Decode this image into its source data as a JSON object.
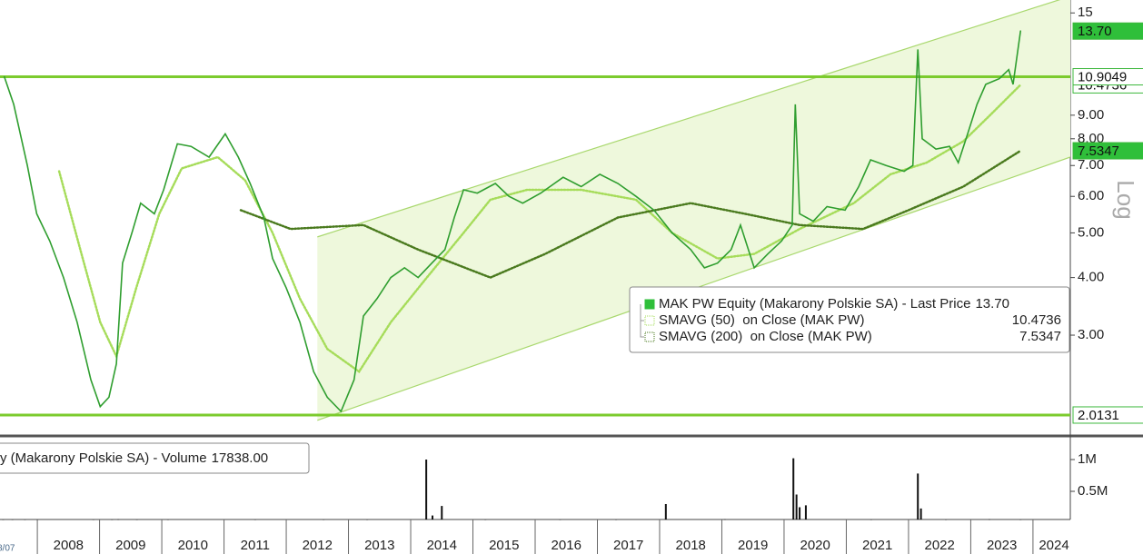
{
  "chart_data": {
    "type": "line",
    "log_scale": true,
    "xlim": [
      2007.4,
      2024.6
    ],
    "xticks": [
      2008,
      2009,
      2010,
      2011,
      2012,
      2013,
      2014,
      2015,
      2016,
      2017,
      2018,
      2019,
      2020,
      2021,
      2022,
      2023,
      2024
    ],
    "x_start_label": "8/07",
    "ylim": [
      1.83,
      16
    ],
    "yticks": [
      15,
      {
        "value": 9,
        "label": "9.00"
      },
      {
        "value": 8,
        "label": "8.00"
      },
      {
        "value": 7,
        "label": "7.00"
      },
      {
        "value": 6,
        "label": "6.00"
      },
      {
        "value": 5,
        "label": "5.00"
      },
      {
        "value": 4,
        "label": "4.00"
      },
      {
        "value": 3,
        "label": "3.00"
      }
    ],
    "scale_label": "Log",
    "levels": [
      {
        "value": 10.9049,
        "label": "10.9049"
      },
      {
        "value": 2.0131,
        "label": "2.0131"
      }
    ],
    "level_color": "#7ccb2e",
    "channel": {
      "x": [
        2012.5,
        2024.6
      ],
      "upper": [
        4.9,
        16.3
      ],
      "lower": [
        1.96,
        7.3
      ],
      "color": "#a9d86e",
      "fill": "#eef8dc"
    },
    "series": [
      {
        "name": "MAK PW Equity (Makarony Polskie SA) - Last Price",
        "value_label": "13.70",
        "color": "#2f9e2f",
        "tag_fill": "#2fbf3a",
        "style": "solid",
        "x": [
          2007.47,
          2007.62,
          2007.84,
          2007.99,
          2008.2,
          2008.42,
          2008.64,
          2008.86,
          2009.01,
          2009.15,
          2009.27,
          2009.37,
          2009.52,
          2009.66,
          2009.88,
          2010.03,
          2010.25,
          2010.47,
          2010.76,
          2011.02,
          2011.23,
          2011.42,
          2011.64,
          2011.78,
          2012.0,
          2012.22,
          2012.44,
          2012.66,
          2012.88,
          2013.09,
          2013.24,
          2013.46,
          2013.68,
          2013.9,
          2014.12,
          2014.34,
          2014.55,
          2014.7,
          2014.85,
          2015.07,
          2015.36,
          2015.58,
          2015.8,
          2016.09,
          2016.45,
          2016.74,
          2017.04,
          2017.33,
          2017.62,
          2017.91,
          2018.2,
          2018.5,
          2018.72,
          2018.93,
          2019.15,
          2019.3,
          2019.52,
          2019.74,
          2019.96,
          2020.13,
          2020.18,
          2020.25,
          2020.47,
          2020.69,
          2020.98,
          2021.2,
          2021.39,
          2021.64,
          2021.93,
          2022.07,
          2022.15,
          2022.22,
          2022.44,
          2022.66,
          2022.8,
          2022.95,
          2023.1,
          2023.24,
          2023.46,
          2023.61,
          2023.68,
          2023.8
        ],
        "values": [
          10.9,
          9.5,
          7.0,
          5.5,
          4.8,
          4.0,
          3.2,
          2.4,
          2.1,
          2.2,
          2.6,
          4.3,
          5.0,
          5.8,
          5.5,
          6.2,
          7.8,
          7.7,
          7.3,
          8.2,
          7.3,
          6.4,
          5.4,
          4.4,
          3.8,
          3.2,
          2.5,
          2.2,
          2.05,
          2.4,
          3.3,
          3.6,
          4.0,
          4.2,
          4.0,
          4.3,
          4.6,
          5.4,
          6.2,
          6.1,
          6.4,
          6.0,
          5.8,
          6.1,
          6.6,
          6.3,
          6.7,
          6.4,
          6.0,
          5.6,
          5.0,
          4.6,
          4.2,
          4.3,
          4.6,
          5.2,
          4.2,
          4.5,
          4.8,
          5.2,
          9.5,
          5.5,
          5.3,
          5.7,
          5.6,
          6.3,
          7.2,
          7.0,
          6.8,
          7.0,
          12.5,
          8.0,
          7.6,
          7.7,
          7.1,
          8.2,
          9.5,
          10.5,
          10.8,
          11.3,
          10.5,
          13.7
        ]
      },
      {
        "name": "SMAVG (50)  on Close (MAK PW)",
        "value_label": "10.4736",
        "color": "#a6dc5a",
        "tag_fill": "#ffffff",
        "style": "dotted",
        "x": [
          2008.35,
          2008.71,
          2009.01,
          2009.27,
          2009.59,
          2009.96,
          2010.32,
          2010.9,
          2011.34,
          2011.78,
          2012.22,
          2012.66,
          2013.17,
          2013.68,
          2014.26,
          2014.85,
          2015.28,
          2015.87,
          2016.74,
          2017.62,
          2018.2,
          2018.93,
          2019.52,
          2020.25,
          2021.12,
          2021.71,
          2022.29,
          2022.88,
          2023.31,
          2023.8
        ],
        "values": [
          6.8,
          4.5,
          3.2,
          2.7,
          3.8,
          5.5,
          6.9,
          7.3,
          6.5,
          5.0,
          3.6,
          2.8,
          2.5,
          3.2,
          4.0,
          5.0,
          5.9,
          6.2,
          6.2,
          5.9,
          5.0,
          4.4,
          4.5,
          5.1,
          5.8,
          6.7,
          7.1,
          7.9,
          9.0,
          10.4736
        ]
      },
      {
        "name": "SMAVG (200)  on Close (MAK PW)",
        "value_label": "7.5347",
        "color": "#4a7a1e",
        "tag_fill": "#2fbf3a",
        "style": "dotted",
        "x": [
          2011.27,
          2012.07,
          2013.24,
          2014.12,
          2015.28,
          2016.16,
          2017.33,
          2018.5,
          2019.37,
          2020.25,
          2021.27,
          2022.0,
          2022.88,
          2023.8
        ],
        "values": [
          5.6,
          5.1,
          5.2,
          4.6,
          4.0,
          4.5,
          5.4,
          5.8,
          5.5,
          5.2,
          5.1,
          5.6,
          6.3,
          7.5347
        ]
      }
    ],
    "volume": {
      "name": "y (Makarony Polskie SA) - Volume",
      "value_label": "17838.00",
      "color": "#111111",
      "ylim": [
        0,
        1300000
      ],
      "yticks": [
        {
          "value": 1000000,
          "label": "1M"
        },
        {
          "value": 500000,
          "label": "0.5M"
        }
      ],
      "x": [
        2007.45,
        2007.6,
        2007.8,
        2008.0,
        2008.9,
        2009.2,
        2009.3,
        2009.6,
        2010.1,
        2011.5,
        2012.6,
        2013.3,
        2014.25,
        2014.35,
        2014.5,
        2015.2,
        2016.4,
        2017.3,
        2018.1,
        2019.05,
        2020.15,
        2020.2,
        2020.25,
        2020.35,
        2021.4,
        2022.15,
        2022.2,
        2022.6,
        2023.3,
        2023.8
      ],
      "values": [
        40000,
        30000,
        25000,
        35000,
        15000,
        30000,
        60000,
        20000,
        15000,
        20000,
        25000,
        30000,
        1000000,
        120000,
        270000,
        40000,
        30000,
        25000,
        300000,
        60000,
        1020000,
        450000,
        250000,
        280000,
        40000,
        780000,
        230000,
        50000,
        60000,
        17838
      ]
    }
  }
}
